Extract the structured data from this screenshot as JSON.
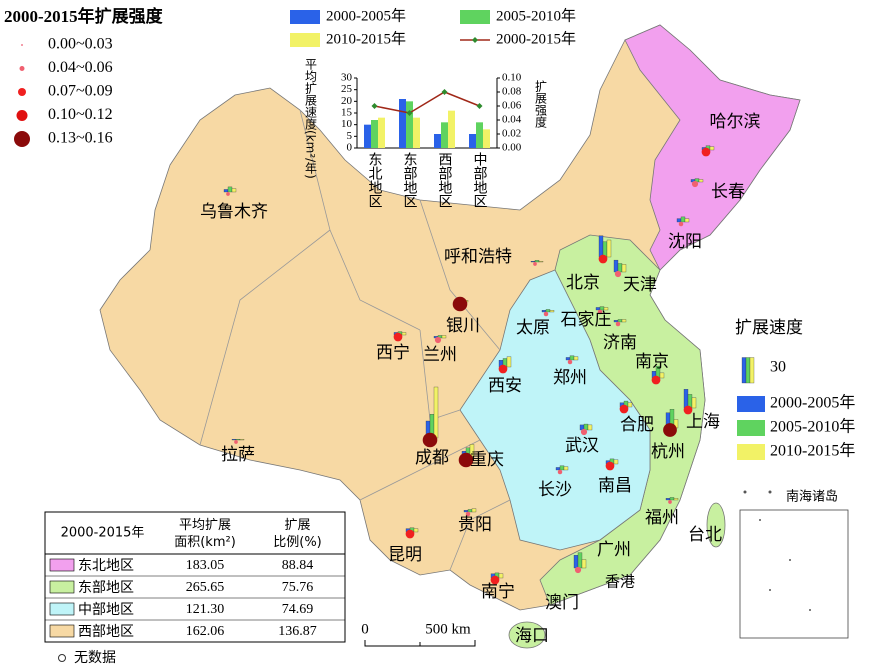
{
  "map": {
    "intensity_legend": {
      "title": "2000-2015年扩展强度",
      "items": [
        {
          "label": "0.00~0.03",
          "color": "#f08090"
        },
        {
          "label": "0.04~0.06",
          "color": "#f06070"
        },
        {
          "label": "0.07~0.09",
          "color": "#f02020"
        },
        {
          "label": "0.10~0.12",
          "color": "#e01010"
        },
        {
          "label": "0.13~0.16",
          "color": "#8b0a0a"
        }
      ]
    },
    "speed_legend": {
      "title": "扩展速度",
      "scale_value": 30,
      "series": [
        {
          "name": "2000-2005年",
          "color": "#2a62e8"
        },
        {
          "name": "2005-2010年",
          "color": "#5fd35f"
        },
        {
          "name": "2010-2015年",
          "color": "#f2f266"
        }
      ]
    },
    "cities": [
      {
        "name": "乌鲁木齐",
        "speeds": [
          3,
          6,
          4
        ],
        "intensity": 0.02
      },
      {
        "name": "呼和浩特",
        "speeds": [
          1,
          2,
          1
        ],
        "intensity": 0.02
      },
      {
        "name": "哈尔滨",
        "speeds": [
          3,
          5,
          4
        ],
        "intensity": 0.08
      },
      {
        "name": "长春",
        "speeds": [
          3,
          4,
          3
        ],
        "intensity": 0.05
      },
      {
        "name": "沈阳",
        "speeds": [
          4,
          6,
          4
        ],
        "intensity": 0.03
      },
      {
        "name": "北京",
        "speeds": [
          25,
          18,
          20
        ],
        "intensity": 0.08
      },
      {
        "name": "天津",
        "speeds": [
          14,
          10,
          9
        ],
        "intensity": 0.05
      },
      {
        "name": "石家庄",
        "speeds": [
          3,
          4,
          3
        ],
        "intensity": 0.03
      },
      {
        "name": "太原",
        "speeds": [
          2,
          3,
          2
        ],
        "intensity": 0.03
      },
      {
        "name": "济南",
        "speeds": [
          2,
          3,
          3
        ],
        "intensity": 0.03
      },
      {
        "name": "银川",
        "speeds": [
          2,
          2,
          2
        ],
        "intensity": 0.15
      },
      {
        "name": "西宁",
        "speeds": [
          3,
          4,
          3
        ],
        "intensity": 0.08
      },
      {
        "name": "兰州",
        "speeds": [
          2,
          3,
          3
        ],
        "intensity": 0.05
      },
      {
        "name": "西安",
        "speeds": [
          8,
          10,
          12
        ],
        "intensity": 0.08
      },
      {
        "name": "郑州",
        "speeds": [
          3,
          5,
          4
        ],
        "intensity": 0.03
      },
      {
        "name": "南京",
        "speeds": [
          8,
          14,
          6
        ],
        "intensity": 0.08
      },
      {
        "name": "合肥",
        "speeds": [
          5,
          7,
          5
        ],
        "intensity": 0.08
      },
      {
        "name": "上海",
        "speeds": [
          22,
          16,
          12
        ],
        "intensity": 0.08
      },
      {
        "name": "杭州",
        "speeds": [
          18,
          22,
          10
        ],
        "intensity": 0.14
      },
      {
        "name": "武汉",
        "speeds": [
          6,
          7,
          6
        ],
        "intensity": 0.05
      },
      {
        "name": "成都",
        "speeds": [
          20,
          28,
          60
        ],
        "intensity": 0.15
      },
      {
        "name": "重庆",
        "speeds": [
          8,
          12,
          16
        ],
        "intensity": 0.15
      },
      {
        "name": "长沙",
        "speeds": [
          3,
          5,
          4
        ],
        "intensity": 0.03
      },
      {
        "name": "南昌",
        "speeds": [
          4,
          6,
          5
        ],
        "intensity": 0.08
      },
      {
        "name": "拉萨",
        "speeds": [
          1,
          1,
          1
        ],
        "intensity": 0.02
      },
      {
        "name": "贵阳",
        "speeds": [
          2,
          3,
          4
        ],
        "intensity": 0.03
      },
      {
        "name": "昆明",
        "speeds": [
          4,
          5,
          4
        ],
        "intensity": 0.08
      },
      {
        "name": "福州",
        "speeds": [
          2,
          3,
          2
        ],
        "intensity": 0.02
      },
      {
        "name": "广州",
        "speeds": [
          15,
          18,
          10
        ],
        "intensity": 0.05
      },
      {
        "name": "南宁",
        "speeds": [
          5,
          6,
          5
        ],
        "intensity": 0.08
      }
    ],
    "place_labels": [
      "香港",
      "澳门",
      "台北",
      "海口",
      "南海诸岛"
    ],
    "scale_bar": [
      "0",
      "500 km"
    ],
    "no_data": "无数据"
  },
  "chart_data": {
    "type": "bar",
    "categories": [
      "东北地区",
      "东部地区",
      "西部地区",
      "中部地区"
    ],
    "series": [
      {
        "name": "2000-2005年",
        "color": "#2a62e8",
        "values": [
          10,
          21,
          6,
          6
        ]
      },
      {
        "name": "2005-2010年",
        "color": "#5fd35f",
        "values": [
          12,
          20,
          11,
          11
        ]
      },
      {
        "name": "2010-2015年",
        "color": "#f2f266",
        "values": [
          13,
          13,
          16,
          8
        ]
      },
      {
        "name": "2000-2015年",
        "type": "line",
        "axis": "y2",
        "color": "#a02818",
        "marker_color": "#2e8b2e",
        "values": [
          0.06,
          0.05,
          0.08,
          0.06
        ]
      }
    ],
    "ylabel": "平均扩展速度(km²/年)",
    "y2label": "扩展强度",
    "ylim": [
      0,
      30
    ],
    "yticks": [
      0,
      5,
      10,
      15,
      20,
      25,
      30
    ],
    "y2lim": [
      0,
      0.1
    ],
    "y2ticks": [
      {
        "value": 0,
        "label": "0.00"
      },
      {
        "value": 0.02,
        "label": "0.02"
      },
      {
        "value": 0.04,
        "label": "0.04"
      },
      {
        "value": 0.06,
        "label": "0.06"
      },
      {
        "value": 0.08,
        "label": "0.08"
      },
      {
        "value": 0.1,
        "label": "0.10"
      }
    ]
  },
  "table": {
    "header": [
      "2000-2015年",
      "平均扩展面积(km²)",
      "扩展比例(%)"
    ],
    "rows": [
      [
        "东北地区",
        "183.05",
        "88.84"
      ],
      [
        "东部地区",
        "265.65",
        "75.76"
      ],
      [
        "中部地区",
        "121.30",
        "74.69"
      ],
      [
        "西部地区",
        "162.06",
        "136.87"
      ]
    ],
    "colors": [
      "#f2a0ee",
      "#c8f0a0",
      "#bff4f8",
      "#f7d9a4"
    ]
  }
}
